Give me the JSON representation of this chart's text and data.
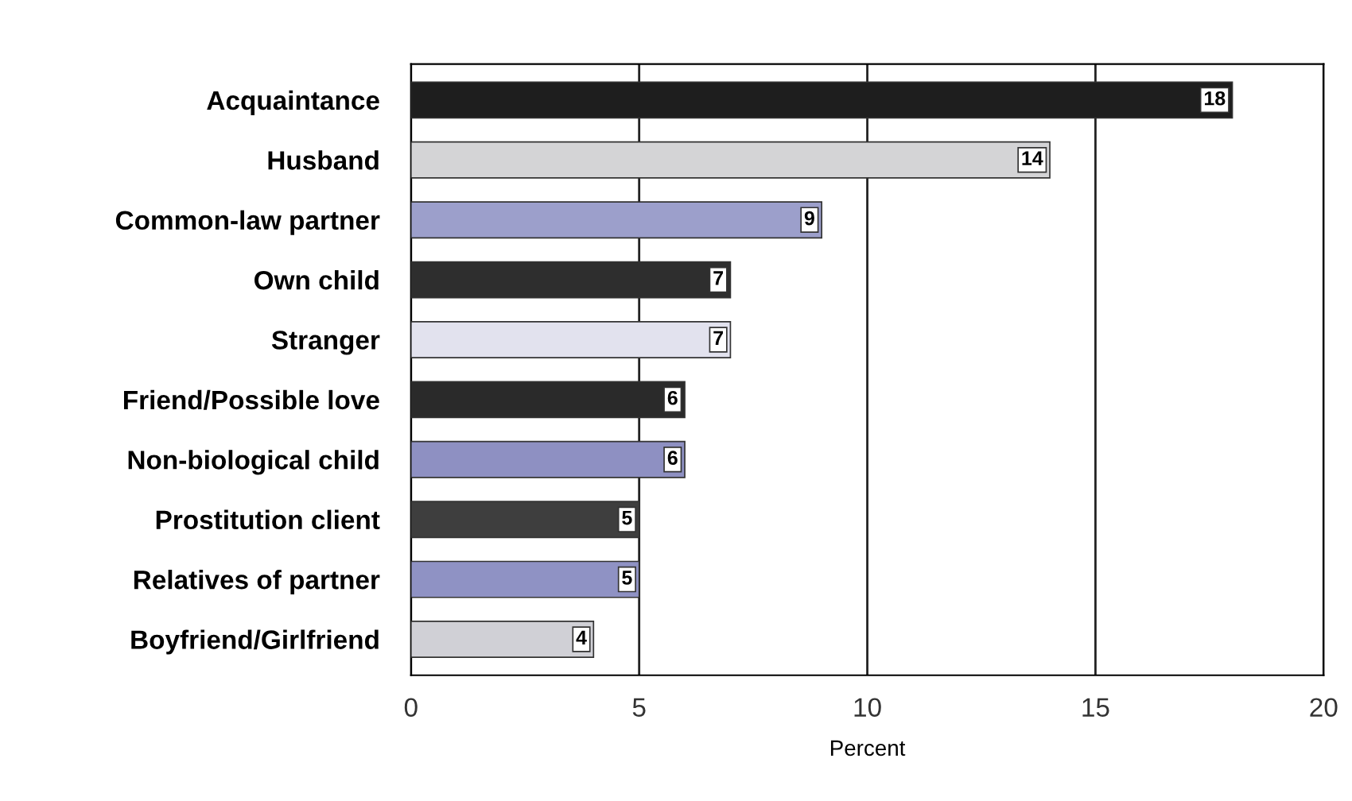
{
  "chart_data": {
    "type": "bar",
    "orientation": "horizontal",
    "xlabel": "Percent",
    "categories": [
      "Acquaintance",
      "Husband",
      "Common-law partner",
      "Own child",
      "Stranger",
      "Friend/Possible love",
      "Non-biological child",
      "Prostitution client",
      "Relatives of partner",
      "Boyfriend/Girlfriend"
    ],
    "values": [
      18,
      14,
      9,
      7,
      7,
      6,
      6,
      5,
      5,
      4
    ],
    "colors": [
      "#1e1e1e",
      "#d4d4d6",
      "#9c9fcb",
      "#2e2e2e",
      "#e2e2ee",
      "#2a2a2a",
      "#8e90c2",
      "#3e3e3e",
      "#8f92c4",
      "#d0d0d6"
    ],
    "xlim": [
      0,
      20
    ],
    "xticks": [
      0,
      5,
      10,
      15,
      20
    ],
    "grid": "x",
    "data_labels": true
  }
}
